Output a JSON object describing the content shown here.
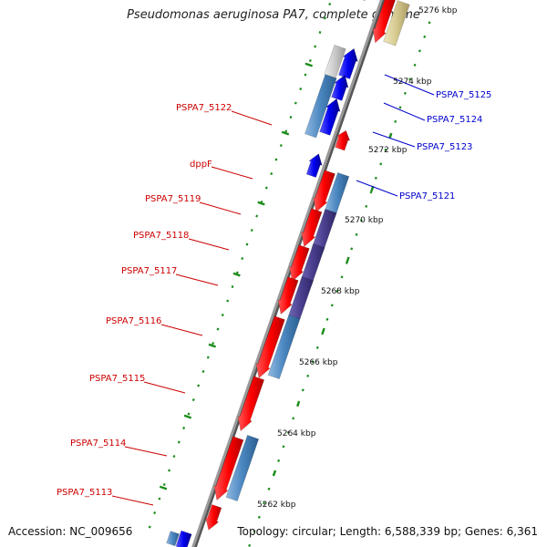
{
  "title": "Pseudomonas aeruginosa PA7, complete genome",
  "footer": {
    "accession": "Accession: NC_009656",
    "topology": "Topology: circular; Length: 6,588,339 bp; Genes: 6,361"
  },
  "colors": {
    "forward_gene": "#ff0000",
    "reverse_gene": "#0000ee",
    "cds_feature": "#4a86c0",
    "cds_feature_dark": "#4a3f8f",
    "left_label": "#cc0000",
    "right_label": "#0000cc",
    "tick_green": "#1a8c1a",
    "backbone": "#8a8a8a"
  },
  "scale_labels": [
    "5276 kbp",
    "5274 kbp",
    "5272 kbp",
    "5270 kbp",
    "5268 kbp",
    "5266 kbp",
    "5264 kbp",
    "5262 kbp"
  ],
  "left_labels": [
    "PSPA7_5122",
    "dppF",
    "PSPA7_5119",
    "PSPA7_5118",
    "PSPA7_5117",
    "PSPA7_5116",
    "PSPA7_5115",
    "PSPA7_5114",
    "PSPA7_5113"
  ],
  "right_labels": [
    "PSPA7_5125",
    "PSPA7_5124",
    "PSPA7_5123",
    "PSPA7_5121"
  ]
}
